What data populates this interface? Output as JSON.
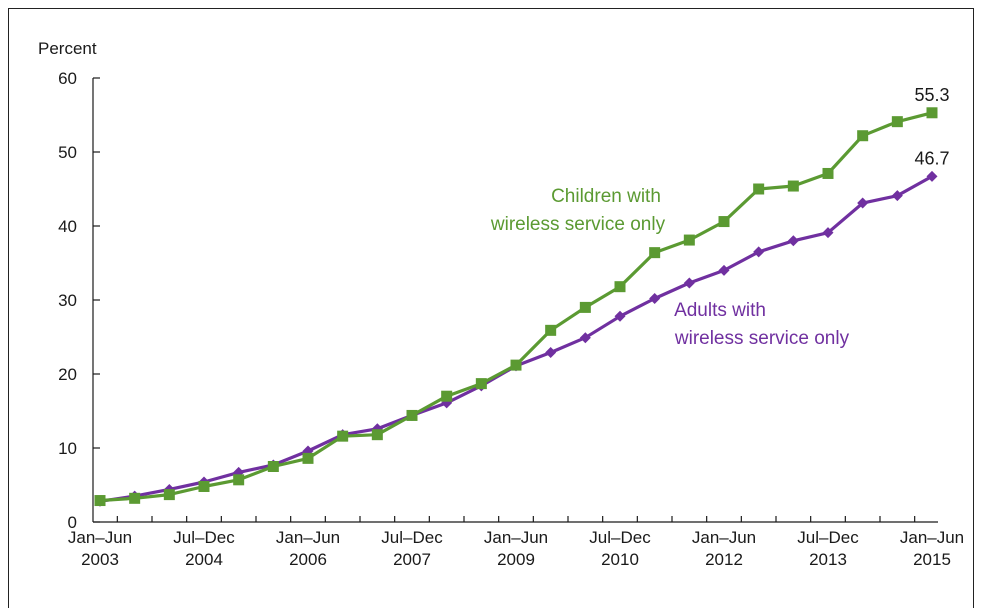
{
  "chart_data": {
    "type": "line",
    "title": "",
    "ylabel": "Percent",
    "xlabel": "",
    "ylim": [
      0,
      60
    ],
    "yticks": [
      0,
      10,
      20,
      30,
      40,
      50,
      60
    ],
    "grid": false,
    "x": [
      "Jan–Jun 2003",
      "Jul–Dec 2003",
      "Jan–Jun 2004",
      "Jul–Dec 2004",
      "Jan–Jun 2005",
      "Jul–Dec 2005",
      "Jan–Jun 2006",
      "Jul–Dec 2006",
      "Jan–Jun 2007",
      "Jul–Dec 2007",
      "Jan–Jun 2008",
      "Jul–Dec 2008",
      "Jan–Jun 2009",
      "Jul–Dec 2009",
      "Jan–Jun 2010",
      "Jul–Dec 2010",
      "Jan–Jun 2011",
      "Jul–Dec 2011",
      "Jan–Jun 2012",
      "Jul–Dec 2012",
      "Jan–Jun 2013",
      "Jul–Dec 2013",
      "Jan–Jun 2014",
      "Jul–Dec 2014",
      "Jan–Jun 2015"
    ],
    "xtick_labels": [
      {
        "index": 0,
        "line1": "Jan–Jun",
        "line2": "2003"
      },
      {
        "index": 3,
        "line1": "Jul–Dec",
        "line2": "2004"
      },
      {
        "index": 6,
        "line1": "Jan–Jun",
        "line2": "2006"
      },
      {
        "index": 9,
        "line1": "Jul–Dec",
        "line2": "2007"
      },
      {
        "index": 12,
        "line1": "Jan–Jun",
        "line2": "2009"
      },
      {
        "index": 15,
        "line1": "Jul–Dec",
        "line2": "2010"
      },
      {
        "index": 18,
        "line1": "Jan–Jun",
        "line2": "2012"
      },
      {
        "index": 21,
        "line1": "Jul–Dec",
        "line2": "2013"
      },
      {
        "index": 24,
        "line1": "Jan–Jun",
        "line2": "2015"
      }
    ],
    "series": [
      {
        "name": "Children with wireless service only",
        "label_lines": [
          "Children with",
          "wireless service only"
        ],
        "color": "#5b9a32",
        "marker": "square",
        "end_label": "55.3",
        "values": [
          2.9,
          3.2,
          3.7,
          4.8,
          5.7,
          7.5,
          8.6,
          11.6,
          11.8,
          14.4,
          17.0,
          18.7,
          21.2,
          25.9,
          29.0,
          31.8,
          36.4,
          38.1,
          40.6,
          45.0,
          45.4,
          47.1,
          52.2,
          54.1,
          55.3
        ]
      },
      {
        "name": "Adults with wireless service only",
        "label_lines": [
          "Adults with",
          "wireless service only"
        ],
        "color": "#7030a0",
        "marker": "diamond",
        "end_label": "46.7",
        "values": [
          2.8,
          3.5,
          4.4,
          5.4,
          6.7,
          7.7,
          9.6,
          11.8,
          12.6,
          14.4,
          16.1,
          18.4,
          21.1,
          22.9,
          24.9,
          27.8,
          30.2,
          32.3,
          34.0,
          36.5,
          38.0,
          39.1,
          43.1,
          44.1,
          46.7
        ]
      }
    ]
  }
}
